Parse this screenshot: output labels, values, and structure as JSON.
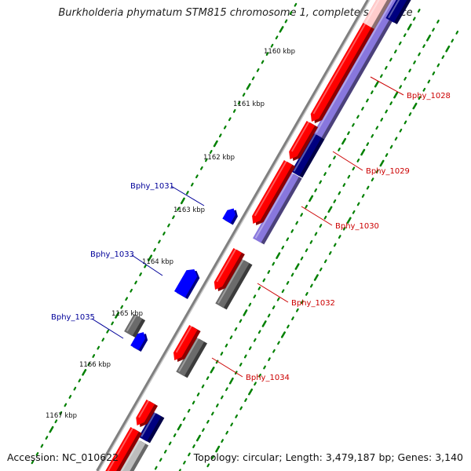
{
  "header": {
    "title": "Burkholderia phymatum STM815 chromosome 1, complete sequence"
  },
  "footer": {
    "accession": "Accession: NC_010622",
    "summary": "Topology: circular; Length: 3,479,187 bp; Genes: 3,140"
  },
  "ruler": {
    "ticks": [
      "1160 kbp",
      "1161 kbp",
      "1162 kbp",
      "1163 kbp",
      "1164 kbp",
      "1165 kbp",
      "1166 kbp",
      "1167 kbp"
    ]
  },
  "genes": [
    {
      "name": "Bphy_1028",
      "strand": "forward",
      "color": "#cc0000"
    },
    {
      "name": "Bphy_1029",
      "strand": "forward",
      "color": "#cc0000"
    },
    {
      "name": "Bphy_1030",
      "strand": "forward",
      "color": "#cc0000"
    },
    {
      "name": "Bphy_1031",
      "strand": "reverse",
      "color": "#000099"
    },
    {
      "name": "Bphy_1032",
      "strand": "forward",
      "color": "#cc0000"
    },
    {
      "name": "Bphy_1033",
      "strand": "reverse",
      "color": "#000099"
    },
    {
      "name": "Bphy_1034",
      "strand": "forward",
      "color": "#cc0000"
    },
    {
      "name": "Bphy_1035",
      "strand": "reverse",
      "color": "#000099"
    }
  ],
  "colors": {
    "cds": "#ff0000",
    "gene_box_forward": "#6b6b6b",
    "gene_box_reverse": "#6b6b6b",
    "protein_forward": "#8877dd",
    "protein_reverse": "#000080",
    "reverse_cds": "#0000ff",
    "backbone": "#808080",
    "ruler_dots": "#008000",
    "forward_label": "#cc0000",
    "reverse_label": "#000099"
  }
}
